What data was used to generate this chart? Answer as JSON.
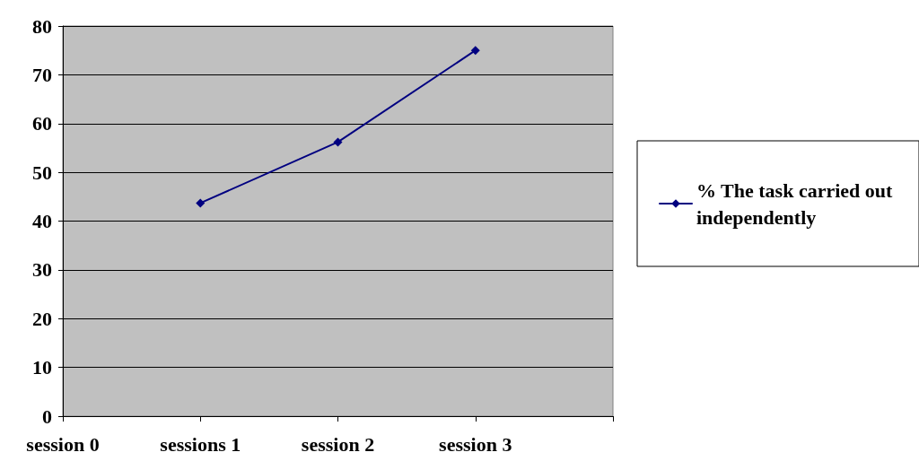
{
  "chart_data": {
    "type": "line",
    "categories": [
      "session 0",
      "sessions 1",
      "session 2",
      "session 3",
      null
    ],
    "series": [
      {
        "name": "% The task carried out independently",
        "color": "#000080",
        "values": [
          null,
          43.7,
          56.2,
          75,
          null
        ]
      }
    ],
    "ylim": [
      0,
      80
    ],
    "yticks": [
      0,
      10,
      20,
      30,
      40,
      50,
      60,
      70,
      80
    ],
    "grid": "y",
    "legend": "right",
    "marker": "diamond",
    "line_style": "solid"
  }
}
